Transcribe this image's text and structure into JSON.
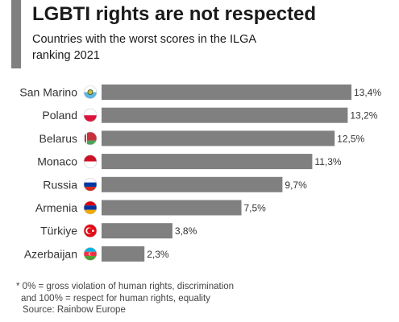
{
  "header": {
    "title": "LGBTI rights are not respected",
    "subtitle": "Countries with the worst scores in the ILGA ranking 2021"
  },
  "chart_data": {
    "type": "bar",
    "orientation": "horizontal",
    "categories": [
      "San Marino",
      "Poland",
      "Belarus",
      "Monaco",
      "Russia",
      "Armenia",
      "Türkiye",
      "Azerbaijan"
    ],
    "values": [
      13.4,
      13.2,
      12.5,
      11.3,
      9.7,
      7.5,
      3.8,
      2.3
    ],
    "value_labels": [
      "13,4%",
      "13,2%",
      "12,5%",
      "11,3%",
      "9,7%",
      "7,5%",
      "3,8%",
      "2,3%"
    ],
    "bar_color": "#808080",
    "flag_icons": [
      "san-marino-flag-icon",
      "poland-flag-icon",
      "belarus-flag-icon",
      "monaco-flag-icon",
      "russia-flag-icon",
      "armenia-flag-icon",
      "turkiye-flag-icon",
      "azerbaijan-flag-icon"
    ],
    "title": "LGBTI rights are not respected",
    "subtitle": "Countries with the worst scores in the ILGA ranking 2021",
    "grid": false
  },
  "footnote": {
    "line1": "* 0% = gross violation of human rights, discrimination",
    "line2": "and 100% = respect for human rights, equality",
    "source": "Source: Rainbow Europe"
  }
}
